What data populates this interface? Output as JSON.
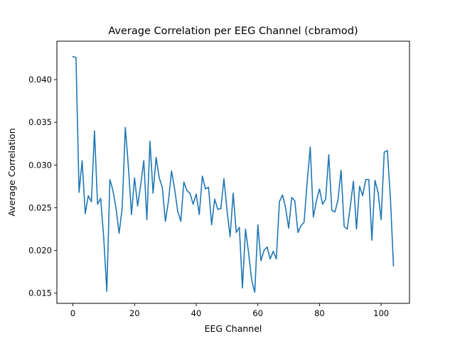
{
  "chart_data": {
    "type": "line",
    "title": "Average Correlation per EEG Channel (cbramod)",
    "xlabel": "EEG Channel",
    "ylabel": "Average Correlation",
    "xlim": [
      -5.2,
      109.2
    ],
    "ylim": [
      0.0138,
      0.0445
    ],
    "xticks": [
      0,
      20,
      40,
      60,
      80,
      100
    ],
    "xtick_labels": [
      "0",
      "20",
      "40",
      "60",
      "80",
      "100"
    ],
    "yticks": [
      0.015,
      0.02,
      0.025,
      0.03,
      0.035,
      0.04
    ],
    "ytick_labels": [
      "0.015",
      "0.020",
      "0.025",
      "0.030",
      "0.035",
      "0.040"
    ],
    "grid": false,
    "legend": "none",
    "series": [
      {
        "color": "#1f77b4",
        "x": [
          0,
          1,
          2,
          3,
          4,
          5,
          6,
          7,
          8,
          9,
          10,
          11,
          12,
          13,
          14,
          15,
          16,
          17,
          18,
          19,
          20,
          21,
          22,
          23,
          24,
          25,
          26,
          27,
          28,
          29,
          30,
          31,
          32,
          33,
          34,
          35,
          36,
          37,
          38,
          39,
          40,
          41,
          42,
          43,
          44,
          45,
          46,
          47,
          48,
          49,
          50,
          51,
          52,
          53,
          54,
          55,
          56,
          57,
          58,
          59,
          60,
          61,
          62,
          63,
          64,
          65,
          66,
          67,
          68,
          69,
          70,
          71,
          72,
          73,
          74,
          75,
          76,
          77,
          78,
          79,
          80,
          81,
          82,
          83,
          84,
          85,
          86,
          87,
          88,
          89,
          90,
          91,
          92,
          93,
          94,
          95,
          96,
          97,
          98,
          99,
          100,
          101,
          102,
          103,
          104
        ],
        "values": [
          0.0427,
          0.0426,
          0.0268,
          0.0305,
          0.0243,
          0.0264,
          0.0257,
          0.034,
          0.0254,
          0.0261,
          0.0215,
          0.0152,
          0.0283,
          0.027,
          0.0249,
          0.022,
          0.025,
          0.0344,
          0.0298,
          0.0242,
          0.0285,
          0.0252,
          0.0277,
          0.0305,
          0.0236,
          0.0328,
          0.0267,
          0.0309,
          0.0285,
          0.0274,
          0.0234,
          0.0258,
          0.0293,
          0.0272,
          0.0246,
          0.0234,
          0.028,
          0.027,
          0.0267,
          0.0254,
          0.0266,
          0.0242,
          0.0287,
          0.0272,
          0.0274,
          0.023,
          0.026,
          0.0248,
          0.0249,
          0.0284,
          0.0247,
          0.0216,
          0.0267,
          0.0221,
          0.0227,
          0.0156,
          0.0225,
          0.0197,
          0.0165,
          0.0151,
          0.023,
          0.0188,
          0.02,
          0.0204,
          0.019,
          0.0199,
          0.019,
          0.0257,
          0.0265,
          0.025,
          0.0226,
          0.0262,
          0.0258,
          0.0221,
          0.0229,
          0.0233,
          0.028,
          0.0321,
          0.0239,
          0.0258,
          0.0272,
          0.0254,
          0.026,
          0.0312,
          0.0247,
          0.0245,
          0.0259,
          0.0294,
          0.0228,
          0.0225,
          0.0252,
          0.0281,
          0.0225,
          0.0275,
          0.0264,
          0.0283,
          0.0283,
          0.0212,
          0.0282,
          0.0268,
          0.0236,
          0.0315,
          0.0317,
          0.0262,
          0.0182
        ]
      }
    ]
  }
}
